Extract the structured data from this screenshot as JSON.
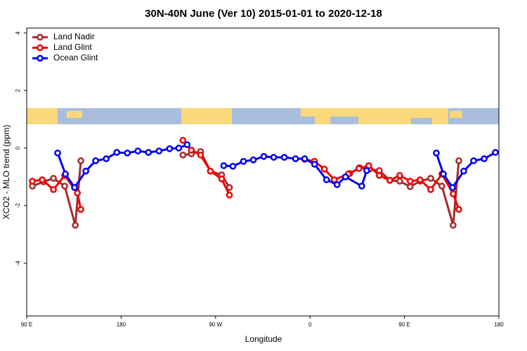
{
  "chart_data": {
    "type": "line",
    "title": "30N-40N June (Ver 10)   2015-01-01 to 2020-12-18",
    "x_label": "Longitude",
    "y_label": "XCO2 - MLO trend (ppm)",
    "xlim": [
      90,
      540
    ],
    "ylim": [
      -5.83,
      4.17
    ],
    "xticks": [
      {
        "value": 90,
        "label": "90 E"
      },
      180,
      {
        "value": 270,
        "label": "90 W"
      },
      {
        "value": 360,
        "label": "0"
      },
      {
        "value": 450,
        "label": "90 E"
      },
      {
        "value": 540,
        "label": "180"
      }
    ],
    "yticks": [
      -4,
      -2,
      0,
      2,
      4
    ],
    "legend": "top-left",
    "series": [
      {
        "name": "Land Nadir",
        "color": "#a52a2a",
        "x": [
          95.4,
          106.1,
          115.5,
          126.2,
          136.3,
          141.6,
          null,
          238.9,
          246.9,
          255.7,
          265.1,
          275.8,
          283.2,
          null,
          397.9,
          407.2,
          416.6,
          426.0,
          436.1,
          445.5,
          455.5,
          464.9,
          475.0,
          485.7,
          496.4,
          501.8
        ],
        "values": [
          -1.32,
          -1.17,
          -1.05,
          -1.32,
          -2.68,
          -0.44,
          null,
          -0.24,
          -0.2,
          -0.12,
          -0.8,
          -0.93,
          -1.37,
          null,
          -0.88,
          -0.68,
          -0.73,
          -0.78,
          -1.12,
          -1.15,
          -1.34,
          -1.15,
          -1.05,
          -1.32,
          -2.68,
          -0.44
        ]
      },
      {
        "name": "Land Glint",
        "color": "#ee0000",
        "x": [
          95.4,
          104.8,
          115.5,
          126.2,
          138.3,
          141.6,
          null,
          238.9,
          246.9,
          255.7,
          265.1,
          275.8,
          283.2,
          null,
          354.9,
          364.3,
          373.7,
          383.1,
          396.5,
          406.6,
          416.0,
          426.0,
          436.1,
          445.5,
          455.5,
          464.9,
          475.0,
          485.7,
          496.4,
          501.8
        ],
        "values": [
          -1.15,
          -1.1,
          -1.44,
          -0.95,
          -1.56,
          -2.13,
          null,
          0.27,
          -0.07,
          -0.24,
          -0.8,
          -1.07,
          -1.63,
          null,
          -0.39,
          -0.46,
          -0.73,
          -1.1,
          -0.9,
          -0.71,
          -0.61,
          -0.95,
          -1.12,
          -0.95,
          -1.15,
          -1.1,
          -1.44,
          -0.9,
          -1.59,
          -2.13
        ]
      },
      {
        "name": "Ocean Glint",
        "color": "#0000ee",
        "x": [
          119.5,
          126.9,
          135.6,
          146.3,
          155.7,
          165.8,
          175.9,
          185.9,
          196.0,
          206.0,
          216.1,
          226.2,
          234.9,
          242.9,
          null,
          277.8,
          286.5,
          296.6,
          306.0,
          316.0,
          325.4,
          335.5,
          346.2,
          354.9,
          364.3,
          375.7,
          385.8,
          393.8,
          409.3,
          414.0,
          null,
          480.4,
          487.1,
          495.8,
          506.5,
          515.9,
          526.0,
          536.7
        ],
        "values": [
          -0.17,
          -0.9,
          -1.37,
          -0.8,
          -0.44,
          -0.37,
          -0.15,
          -0.17,
          -0.1,
          -0.15,
          -0.1,
          -0.02,
          0.0,
          0.12,
          null,
          -0.61,
          -0.63,
          -0.46,
          -0.41,
          -0.29,
          -0.32,
          -0.32,
          -0.37,
          -0.37,
          -0.56,
          -1.1,
          -1.27,
          -1.0,
          -1.32,
          -0.78,
          null,
          -0.17,
          -0.9,
          -1.37,
          -0.8,
          -0.44,
          -0.37,
          -0.15
        ]
      }
    ]
  }
}
